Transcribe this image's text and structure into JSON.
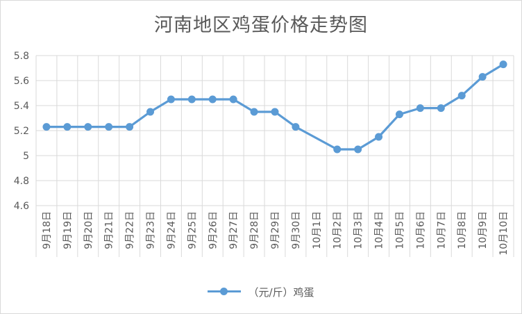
{
  "chart_data": {
    "type": "line",
    "title": "河南地区鸡蛋价格走势图",
    "xlabel": "",
    "ylabel": "",
    "categories": [
      "9月18日",
      "9月19日",
      "9月20日",
      "9月21日",
      "9月22日",
      "9月23日",
      "9月24日",
      "9月25日",
      "9月26日",
      "9月27日",
      "9月28日",
      "9月29日",
      "9月30日",
      "10月1日",
      "10月2日",
      "10月3日",
      "10月4日",
      "10月5日",
      "10月6日",
      "10月7日",
      "10月8日",
      "10月9日",
      "10月10日"
    ],
    "series": [
      {
        "name": "（元/斤）鸡蛋",
        "color": "#5b9bd5",
        "values": [
          5.23,
          5.23,
          5.23,
          5.23,
          5.23,
          5.35,
          5.45,
          5.45,
          5.45,
          5.45,
          5.35,
          5.35,
          5.23,
          null,
          5.05,
          5.05,
          5.15,
          5.33,
          5.38,
          5.38,
          5.48,
          5.63,
          5.73
        ]
      }
    ],
    "ylim": [
      4.6,
      5.8
    ],
    "yticks": [
      "4.6",
      "4.8",
      "5",
      "5.2",
      "5.4",
      "5.6",
      "5.8"
    ],
    "grid": true,
    "legend_position": "bottom"
  }
}
